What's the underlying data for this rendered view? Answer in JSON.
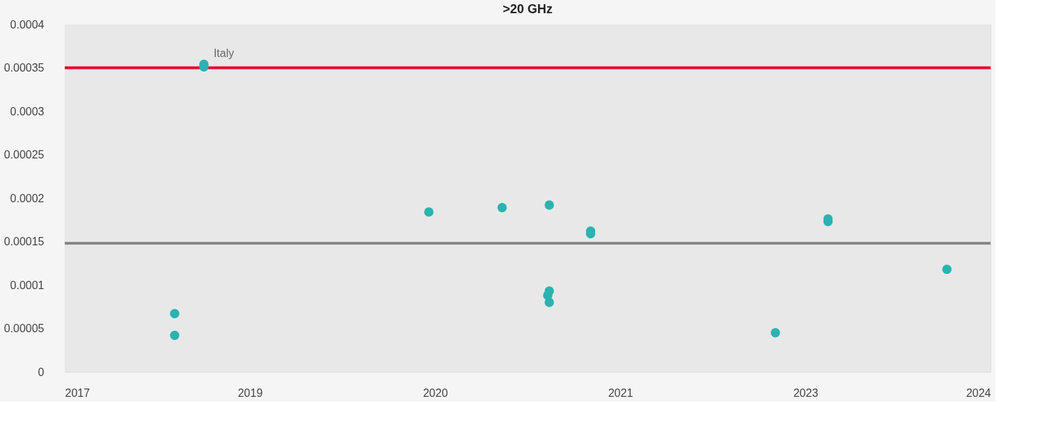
{
  "chart_data": {
    "type": "scatter",
    "title": ">20 GHz",
    "x": [
      "2018-08-10",
      "2018-08-10",
      "2018-10-24",
      "2018-10-24",
      "2020-05-23",
      "2020-11-27",
      "2021-03-28",
      "2021-03-28",
      "2021-03-24",
      "2021-03-28",
      "2021-07-12",
      "2021-07-12",
      "2022-10-29",
      "2023-03-13",
      "2023-03-13",
      "2024-01-12"
    ],
    "series": [
      {
        "color": "#2ab3b1",
        "values": [
          4.2e-05,
          6.7e-05,
          0.000354,
          0.000351,
          0.000184,
          0.000189,
          0.000192,
          9.3e-05,
          8.8e-05,
          8e-05,
          0.000162,
          0.000159,
          4.5e-05,
          0.000176,
          0.000173,
          0.000118
        ]
      }
    ],
    "xlim": [
      "2017-11-01",
      "2024-05-03"
    ],
    "xticks": [
      {
        "value": "2017-11-01",
        "label": "2017"
      },
      {
        "value": "2019-02-19",
        "label": "2019"
      },
      {
        "value": "2020-06-08",
        "label": "2020"
      },
      {
        "value": "2021-09-26",
        "label": "2021"
      },
      {
        "value": "2023-01-14",
        "label": "2023"
      },
      {
        "value": "2024-05-03",
        "label": "2024"
      }
    ],
    "ylim": [
      0,
      0.0004
    ],
    "yticks": [
      0,
      {
        "value": 5e-05,
        "label": "0.00005"
      },
      {
        "value": 0.0001,
        "label": "0.0001"
      },
      {
        "value": 0.00015,
        "label": "0.00015"
      },
      {
        "value": 0.0002,
        "label": "0.0002"
      },
      {
        "value": 0.00025,
        "label": "0.00025"
      },
      {
        "value": 0.0003,
        "label": "0.0003"
      },
      {
        "value": 0.00035,
        "label": "0.00035"
      },
      {
        "value": 0.0004,
        "label": "0.0004"
      }
    ],
    "ref_lines": [
      {
        "axis": "y",
        "value": 0.00035,
        "color": "#e4002b"
      },
      {
        "axis": "y",
        "value": 0.000148,
        "color": "#888888"
      }
    ],
    "annotations": [
      {
        "text": "Italy",
        "x": "2018-10-24",
        "y": 0.000354
      }
    ],
    "marker": "circle",
    "grid": false
  }
}
